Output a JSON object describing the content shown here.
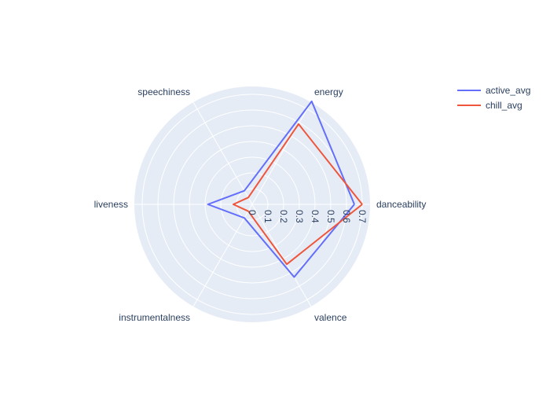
{
  "chart_data": {
    "type": "radar",
    "title": "",
    "theta": [
      "danceability",
      "energy",
      "speechiness",
      "liveness",
      "instrumentalness",
      "valence"
    ],
    "radial_range": [
      0,
      0.75
    ],
    "radial_ticks": [
      0,
      0.1,
      0.2,
      0.3,
      0.4,
      0.5,
      0.6,
      0.7
    ],
    "radial_tick_labels": [
      "0",
      "0.1",
      "0.2",
      "0.3",
      "0.4",
      "0.5",
      "0.6",
      "0.7"
    ],
    "grid": true,
    "legend_position": "top-right",
    "series": [
      {
        "name": "active_avg",
        "color": "#636efa",
        "values": [
          0.65,
          0.757,
          0.1,
          0.282,
          0.1,
          0.534
        ]
      },
      {
        "name": "chill_avg",
        "color": "#ef553b",
        "values": [
          0.7,
          0.59,
          0.05,
          0.12,
          0.05,
          0.44
        ]
      }
    ]
  }
}
